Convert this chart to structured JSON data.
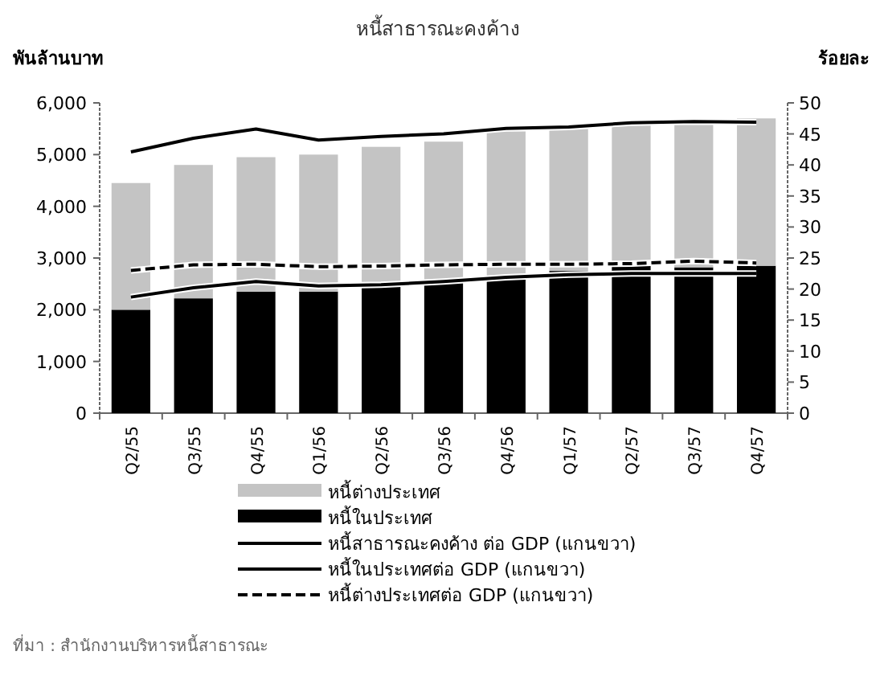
{
  "chart_data": {
    "type": "bar",
    "title": "หนี้สาธารณะคงค้าง",
    "ylabel": "พันล้านบาท",
    "y2label": "ร้อยละ",
    "categories": [
      "Q2/55",
      "Q3/55",
      "Q4/55",
      "Q1/56",
      "Q2/56",
      "Q3/56",
      "Q4/56",
      "Q1/57",
      "Q2/57",
      "Q3/57",
      "Q4/57"
    ],
    "stacked": true,
    "series": [
      {
        "name": "หนี้ในประเทศ",
        "color": "#000000",
        "values": [
          2000,
          2220,
          2350,
          2350,
          2450,
          2550,
          2650,
          2750,
          2850,
          2820,
          2850
        ]
      },
      {
        "name": "หนี้ต่างประเทศ",
        "color": "#c4c4c4",
        "values": [
          2450,
          2580,
          2600,
          2650,
          2700,
          2700,
          2800,
          2750,
          2750,
          2830,
          2850
        ]
      },
      {
        "name": "หนี้สาธารณะคงค้าง ต่อ GDP (แกนขวา)",
        "type": "line",
        "axis": "y2",
        "color": "#000000",
        "line_style": "solid",
        "values": [
          42.1,
          44.3,
          45.8,
          44.0,
          44.6,
          45.0,
          45.9,
          46.1,
          46.8,
          47.0,
          46.9
        ]
      },
      {
        "name": "หนี้ในประเทศต่อ GDP (แกนขวา)",
        "type": "line",
        "axis": "y2",
        "color": "#000000",
        "line_style": "solid",
        "values": [
          18.7,
          20.2,
          21.2,
          20.5,
          20.7,
          21.2,
          21.9,
          22.3,
          22.5,
          22.5,
          22.5
        ]
      },
      {
        "name": "หนี้ต่างประเทศต่อ GDP (แกนขวา)",
        "type": "line",
        "axis": "y2",
        "color": "#000000",
        "line_style": "dashed",
        "values": [
          23.0,
          23.9,
          24.0,
          23.6,
          23.7,
          23.9,
          24.0,
          24.0,
          24.1,
          24.5,
          24.2
        ]
      }
    ],
    "ylim": [
      0,
      6000
    ],
    "yticks": [
      {
        "value": 0,
        "label": "0"
      },
      {
        "value": 1000,
        "label": "1,000"
      },
      {
        "value": 2000,
        "label": "2,000"
      },
      {
        "value": 3000,
        "label": "3,000"
      },
      {
        "value": 4000,
        "label": "4,000"
      },
      {
        "value": 5000,
        "label": "5,000"
      },
      {
        "value": 6000,
        "label": "6,000"
      }
    ],
    "y2lim": [
      0,
      50
    ],
    "y2ticks": [
      0,
      5,
      10,
      15,
      20,
      25,
      30,
      35,
      40,
      45,
      50
    ],
    "legend": "bottom",
    "grid": false,
    "annotations": [
      "ที่มา : สำนักงานบริหารหนี้สาธารณะ"
    ]
  }
}
